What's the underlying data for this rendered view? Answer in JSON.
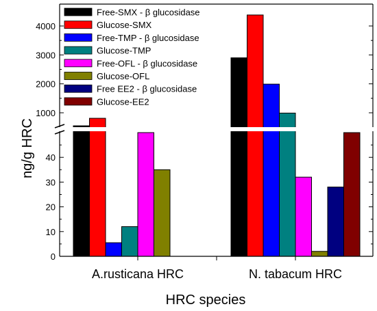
{
  "chart_data": {
    "type": "bar",
    "xlabel": "HRC species",
    "ylabel": "ng/g HRC",
    "categories": [
      "A.rusticana HRC",
      "N. tabacum HRC"
    ],
    "axis_break": {
      "lower_range": [
        0,
        50
      ],
      "upper_range": [
        500,
        4500
      ]
    },
    "lower_ticks": [
      0,
      10,
      20,
      30,
      40
    ],
    "upper_ticks": [
      1000,
      2000,
      3000,
      4000
    ],
    "legend_position": "top-left, inside plot",
    "grid": false,
    "series": [
      {
        "name": "Free-SMX  -  β glucosidase",
        "color": "#000000",
        "values": [
          550,
          2900
        ]
      },
      {
        "name": "Glucose-SMX",
        "color": "#ff0000",
        "values": [
          810,
          4380
        ]
      },
      {
        "name": "Free-TMP  -  β glucosidase",
        "color": "#0000ff",
        "values": [
          5.5,
          1990
        ]
      },
      {
        "name": "Glucose-TMP",
        "color": "#008080",
        "values": [
          12,
          990
        ]
      },
      {
        "name": "Free-OFL  -  β glucosidase",
        "color": "#ff00ff",
        "values": [
          50,
          32
        ]
      },
      {
        "name": "Glucose-OFL",
        "color": "#808000",
        "values": [
          35,
          2
        ]
      },
      {
        "name": "Free EE2  -  β glucosidase",
        "color": "#000080",
        "values": [
          null,
          28
        ]
      },
      {
        "name": "Glucose-EE2",
        "color": "#800000",
        "values": [
          null,
          50
        ]
      }
    ]
  }
}
